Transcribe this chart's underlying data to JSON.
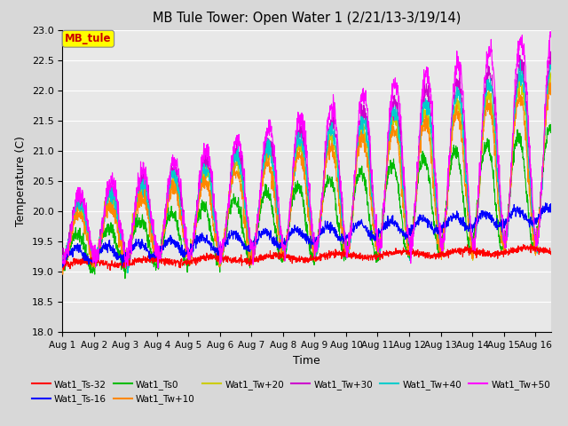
{
  "title": "MB Tule Tower: Open Water 1 (2/21/13-3/19/14)",
  "xlabel": "Time",
  "ylabel": "Temperature (C)",
  "ylim": [
    18.0,
    23.0
  ],
  "yticks": [
    18.0,
    18.5,
    19.0,
    19.5,
    20.0,
    20.5,
    21.0,
    21.5,
    22.0,
    22.5,
    23.0
  ],
  "xlim_days": [
    0,
    15.5
  ],
  "xtick_labels": [
    "Aug 1",
    "Aug 2",
    "Aug 3",
    "Aug 4",
    "Aug 5",
    "Aug 6",
    "Aug 7",
    "Aug 8",
    "Aug 9",
    "Aug 10",
    "Aug 11",
    "Aug 12",
    "Aug 13",
    "Aug 14",
    "Aug 15",
    "Aug 16"
  ],
  "xtick_positions": [
    0,
    1,
    2,
    3,
    4,
    5,
    6,
    7,
    8,
    9,
    10,
    11,
    12,
    13,
    14,
    15
  ],
  "series_colors": {
    "Wat1_Ts-32": "#ff0000",
    "Wat1_Ts-16": "#0000ff",
    "Wat1_Ts0": "#00bb00",
    "Wat1_Tw+10": "#ff8800",
    "Wat1_Tw+20": "#cccc00",
    "Wat1_Tw+30": "#cc00cc",
    "Wat1_Tw+40": "#00cccc",
    "Wat1_Tw+50": "#ff00ff"
  },
  "legend_box_color": "#ffff00",
  "legend_box_text": "MB_tule",
  "legend_box_text_color": "#cc0000",
  "background_color": "#e8e8e8",
  "fig_background_color": "#d8d8d8",
  "grid_color": "#ffffff"
}
